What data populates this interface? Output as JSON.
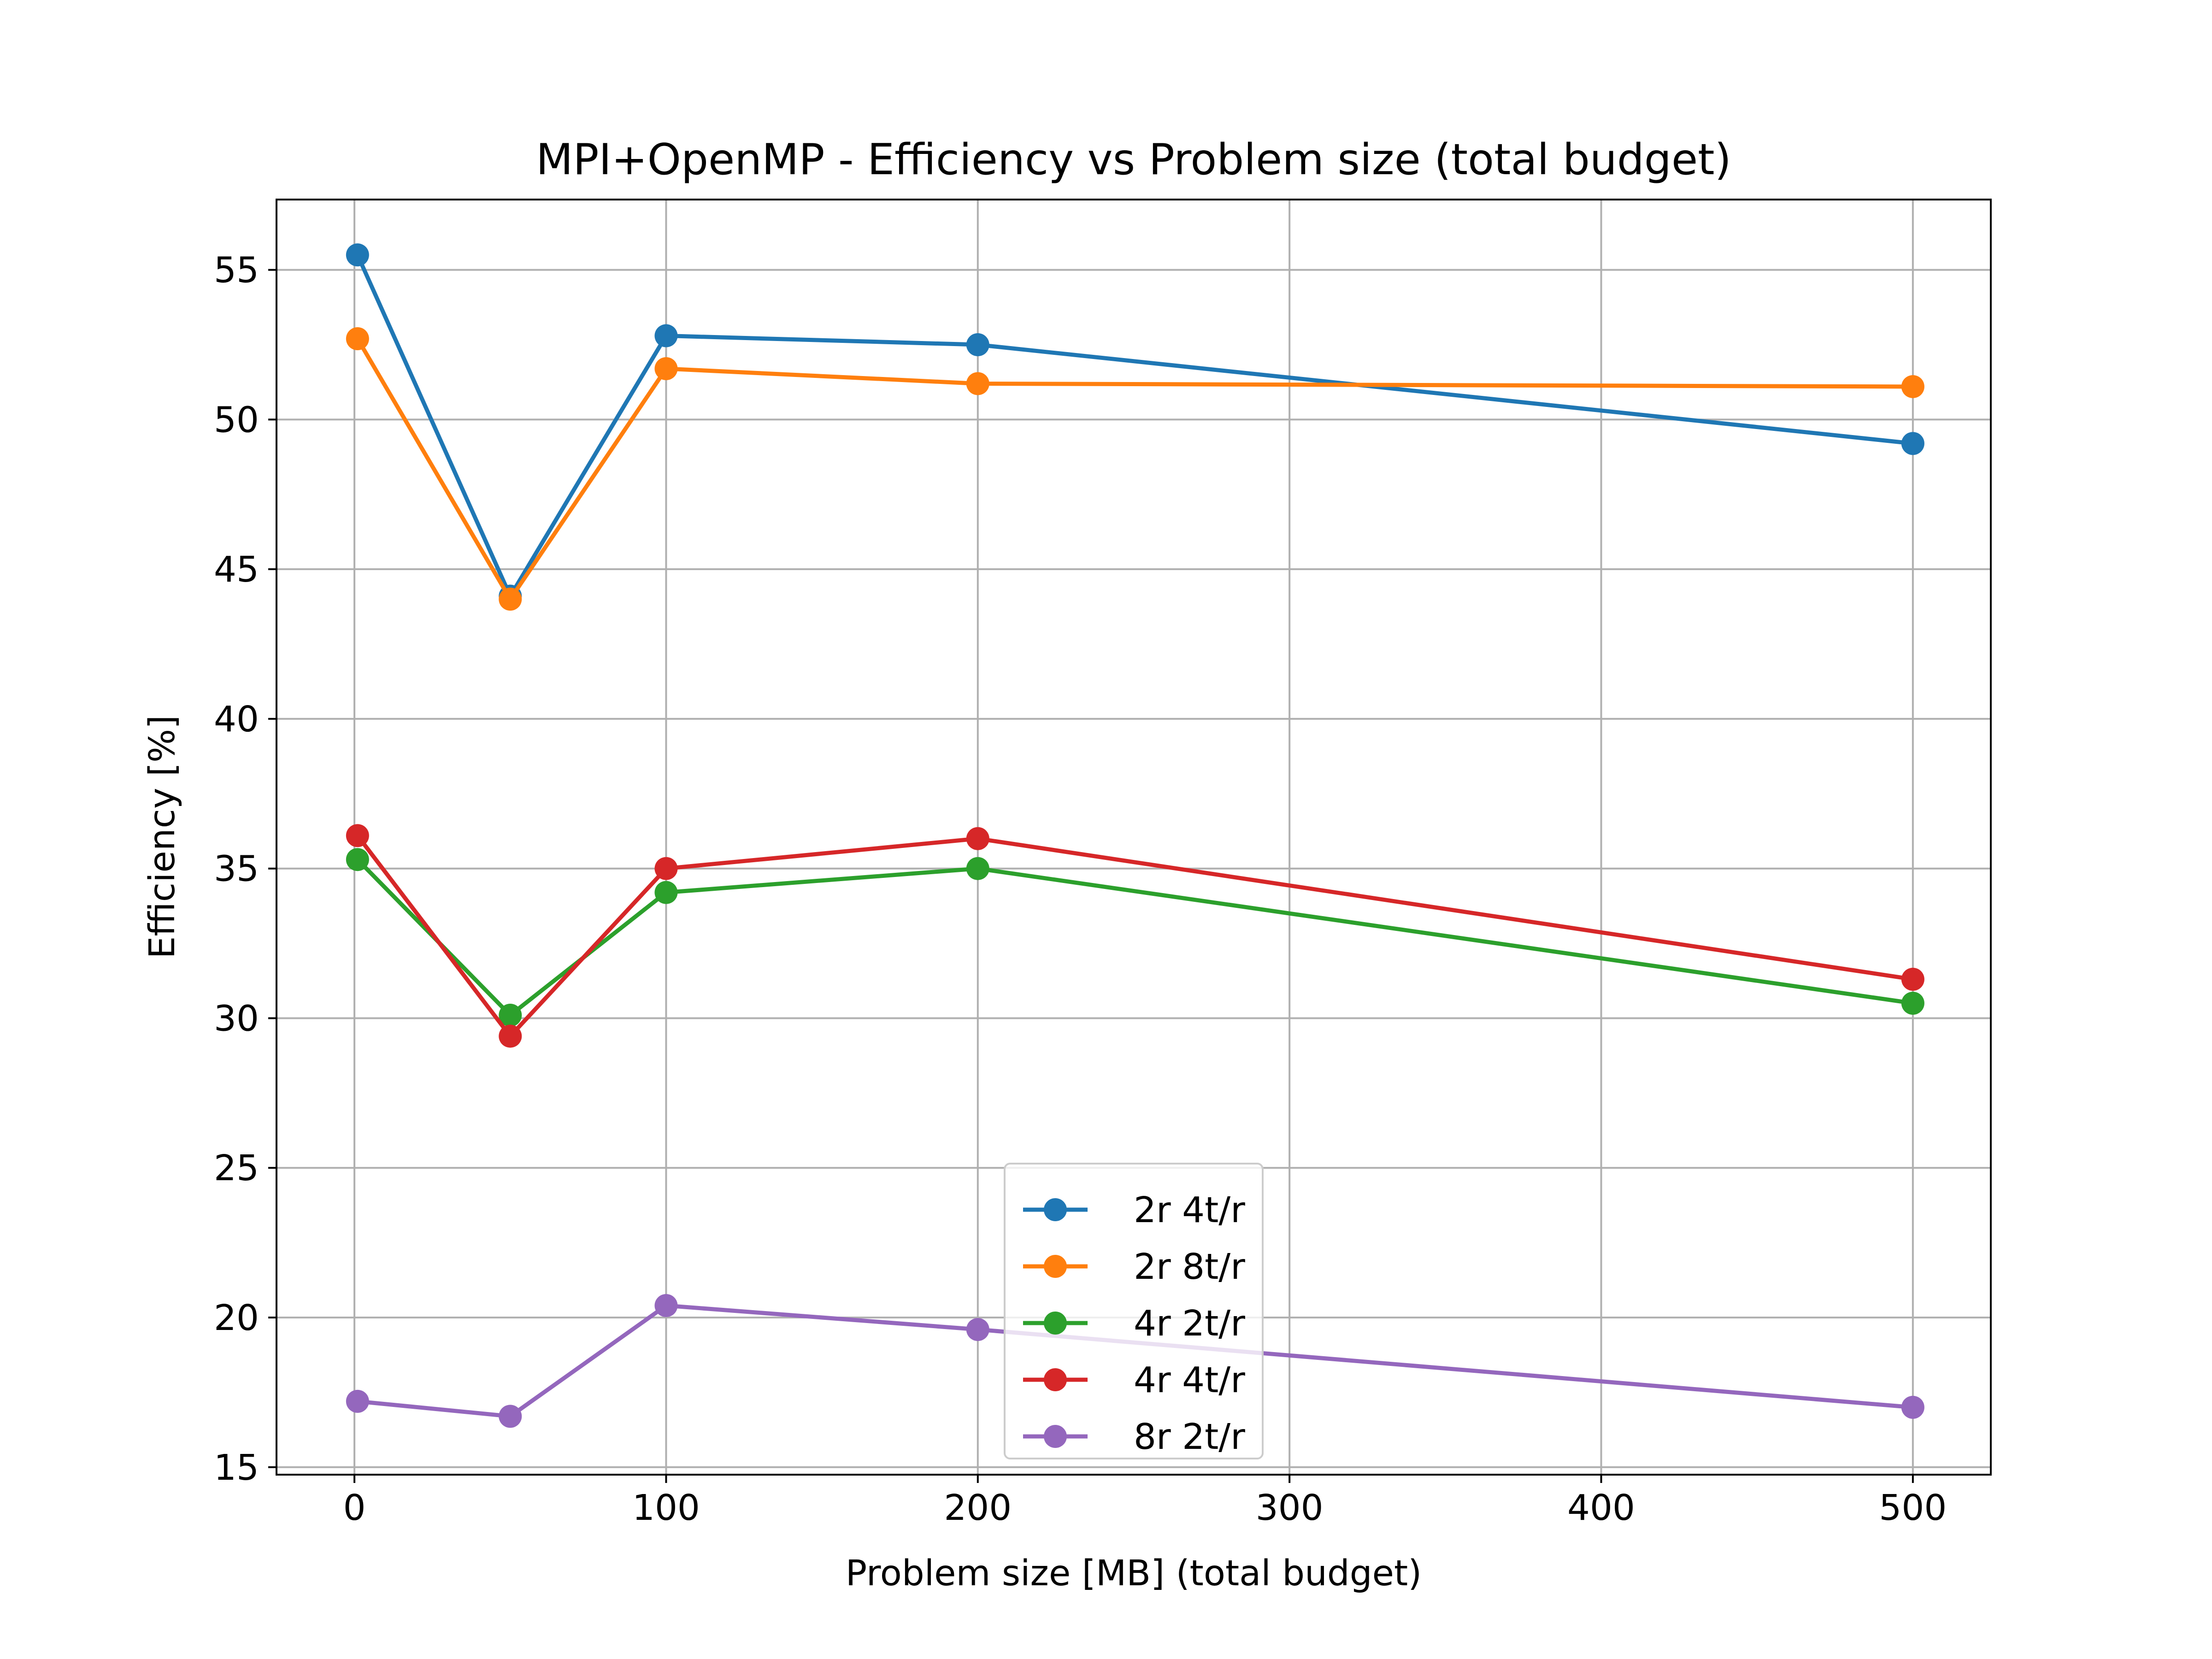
{
  "chart_data": {
    "type": "line",
    "title": "MPI+OpenMP - Efficiency vs Problem size (total budget)",
    "xlabel": "Problem size [MB] (total budget)",
    "ylabel": "Efficiency [%]",
    "xlim": [
      -25,
      525
    ],
    "ylim": [
      14.75,
      57.35
    ],
    "xticks": [
      0,
      100,
      200,
      300,
      400,
      500
    ],
    "yticks": [
      15,
      20,
      25,
      30,
      35,
      40,
      45,
      50,
      55
    ],
    "xtick_labels": [
      "0",
      "100",
      "200",
      "300",
      "400",
      "500"
    ],
    "ytick_labels": [
      "15",
      "20",
      "25",
      "30",
      "35",
      "40",
      "45",
      "50",
      "55"
    ],
    "grid": true,
    "legend_position": "lower center",
    "x": [
      1,
      50,
      100,
      200,
      500
    ],
    "series": [
      {
        "name": "2r 4t/r",
        "color": "#1f77b4",
        "values": [
          55.5,
          44.1,
          52.8,
          52.5,
          49.2
        ]
      },
      {
        "name": "2r 8t/r",
        "color": "#ff7f0e",
        "values": [
          52.7,
          44.0,
          51.7,
          51.2,
          51.1
        ]
      },
      {
        "name": "4r 2t/r",
        "color": "#2ca02c",
        "values": [
          35.3,
          30.1,
          34.2,
          35.0,
          30.5
        ]
      },
      {
        "name": "4r 4t/r",
        "color": "#d62728",
        "values": [
          36.1,
          29.4,
          35.0,
          36.0,
          31.3
        ]
      },
      {
        "name": "8r 2t/r",
        "color": "#9467bd",
        "values": [
          17.2,
          16.7,
          20.4,
          19.6,
          17.0
        ]
      }
    ]
  }
}
